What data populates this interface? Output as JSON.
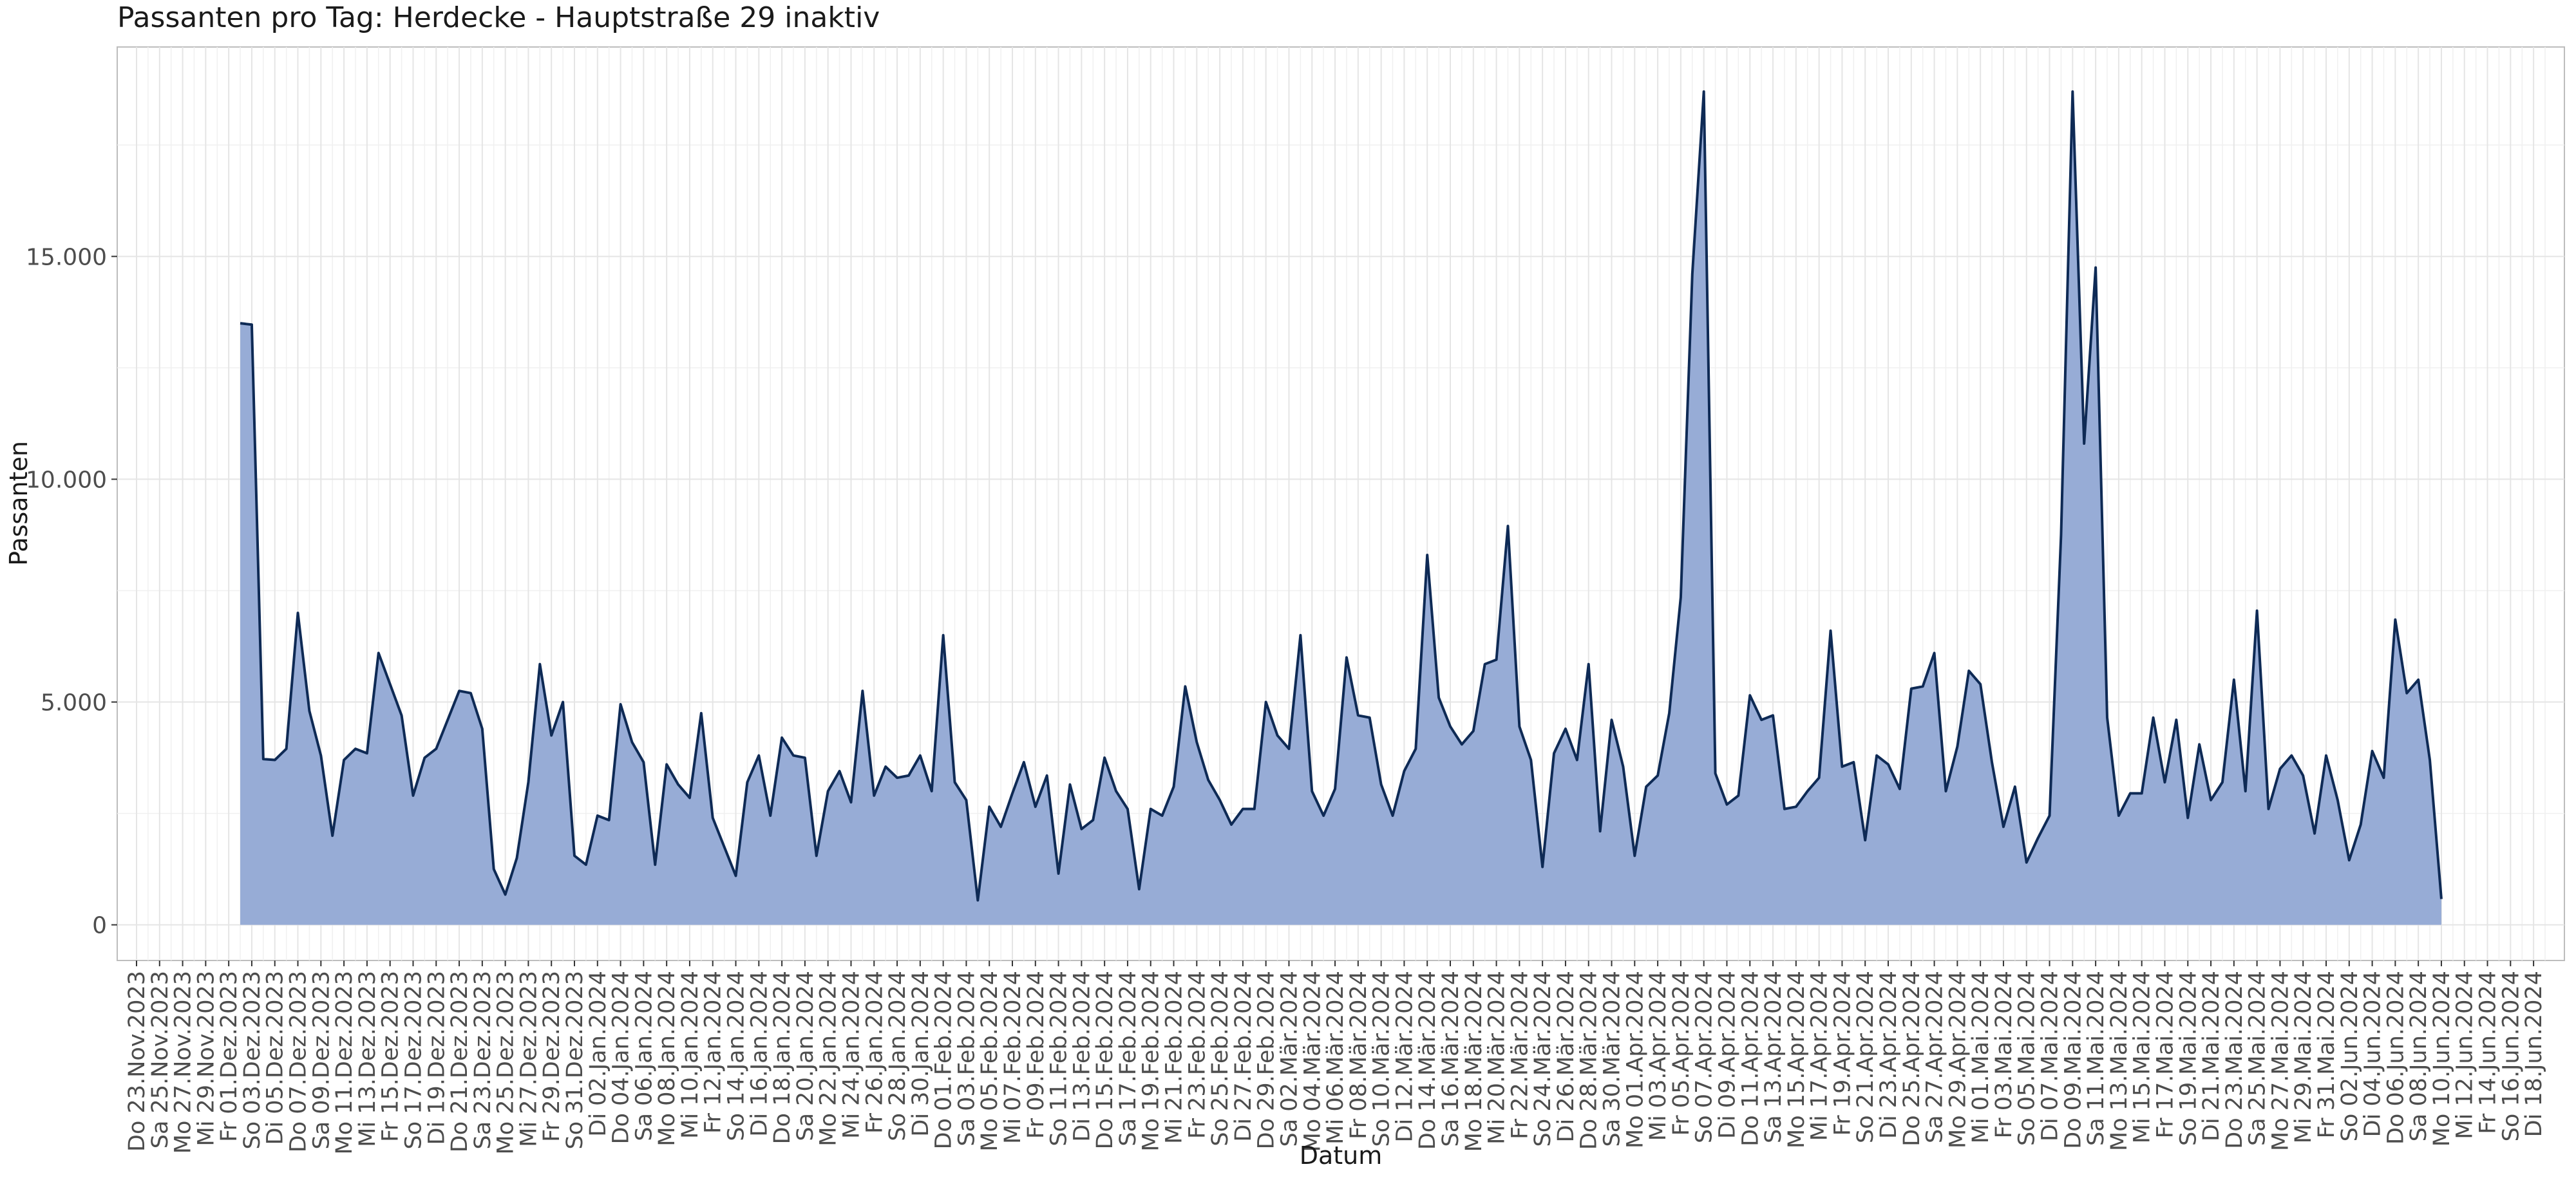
{
  "chart_data": {
    "type": "area",
    "title": "Passanten pro Tag: Herdecke - Hauptstraße 29 inaktiv",
    "xlabel": "Datum",
    "ylabel": "Passanten",
    "ylim": [
      -800,
      19700
    ],
    "y_ticks": [
      0,
      5000,
      10000,
      15000
    ],
    "y_tick_labels": [
      "0",
      "5.000",
      "10.000",
      "15.000"
    ],
    "grid": true,
    "x_range": [
      "2023-11-23",
      "2024-06-19"
    ],
    "x_tick_labels": [
      "Do 23.Nov.2023",
      "Sa 25.Nov.2023",
      "Mo 27.Nov.2023",
      "Mi 29.Nov.2023",
      "Fr 01.Dez.2023",
      "So 03.Dez.2023",
      "Di 05.Dez.2023",
      "Do 07.Dez.2023",
      "Sa 09.Dez.2023",
      "Mo 11.Dez.2023",
      "Mi 13.Dez.2023",
      "Fr 15.Dez.2023",
      "So 17.Dez.2023",
      "Di 19.Dez.2023",
      "Do 21.Dez.2023",
      "Sa 23.Dez.2023",
      "Mo 25.Dez.2023",
      "Mi 27.Dez.2023",
      "Fr 29.Dez.2023",
      "So 31.Dez.2023",
      "Di 02.Jan.2024",
      "Do 04.Jan.2024",
      "Sa 06.Jan.2024",
      "Mo 08.Jan.2024",
      "Mi 10.Jan.2024",
      "Fr 12.Jan.2024",
      "So 14.Jan.2024",
      "Di 16.Jan.2024",
      "Do 18.Jan.2024",
      "Sa 20.Jan.2024",
      "Mo 22.Jan.2024",
      "Mi 24.Jan.2024",
      "Fr 26.Jan.2024",
      "So 28.Jan.2024",
      "Di 30.Jan.2024",
      "Do 01.Feb.2024",
      "Sa 03.Feb.2024",
      "Mo 05.Feb.2024",
      "Mi 07.Feb.2024",
      "Fr 09.Feb.2024",
      "So 11.Feb.2024",
      "Di 13.Feb.2024",
      "Do 15.Feb.2024",
      "Sa 17.Feb.2024",
      "Mo 19.Feb.2024",
      "Mi 21.Feb.2024",
      "Fr 23.Feb.2024",
      "So 25.Feb.2024",
      "Di 27.Feb.2024",
      "Do 29.Feb.2024",
      "Sa 02.Mär.2024",
      "Mo 04.Mär.2024",
      "Mi 06.Mär.2024",
      "Fr 08.Mär.2024",
      "So 10.Mär.2024",
      "Di 12.Mär.2024",
      "Do 14.Mär.2024",
      "Sa 16.Mär.2024",
      "Mo 18.Mär.2024",
      "Mi 20.Mär.2024",
      "Fr 22.Mär.2024",
      "So 24.Mär.2024",
      "Di 26.Mär.2024",
      "Do 28.Mär.2024",
      "Sa 30.Mär.2024",
      "Mo 01.Apr.2024",
      "Mi 03.Apr.2024",
      "Fr 05.Apr.2024",
      "So 07.Apr.2024",
      "Di 09.Apr.2024",
      "Do 11.Apr.2024",
      "Sa 13.Apr.2024",
      "Mo 15.Apr.2024",
      "Mi 17.Apr.2024",
      "Fr 19.Apr.2024",
      "So 21.Apr.2024",
      "Di 23.Apr.2024",
      "Do 25.Apr.2024",
      "Sa 27.Apr.2024",
      "Mo 29.Apr.2024",
      "Mi 01.Mai.2024",
      "Fr 03.Mai.2024",
      "So 05.Mai.2024",
      "Di 07.Mai.2024",
      "Do 09.Mai.2024",
      "Sa 11.Mai.2024",
      "Mo 13.Mai.2024",
      "Mi 15.Mai.2024",
      "Fr 17.Mai.2024",
      "So 19.Mai.2024",
      "Di 21.Mai.2024",
      "Do 23.Mai.2024",
      "Sa 25.Mai.2024",
      "Mo 27.Mai.2024",
      "Mi 29.Mai.2024",
      "Fr 31.Mai.2024",
      "So 02.Jun.2024",
      "Di 04.Jun.2024",
      "Do 06.Jun.2024",
      "Sa 08.Jun.2024",
      "Mo 10.Jun.2024",
      "Mi 12.Jun.2024",
      "Fr 14.Jun.2024",
      "So 16.Jun.2024",
      "Di 18.Jun.2024"
    ],
    "x_start": "2023-12-02",
    "values": [
      13500,
      13470,
      3720,
      3700,
      3950,
      7000,
      4800,
      3800,
      2000,
      3700,
      3950,
      3850,
      6100,
      5400,
      4700,
      2900,
      3750,
      3950,
      4600,
      5250,
      5200,
      4400,
      1250,
      680,
      1500,
      3200,
      5850,
      4250,
      5000,
      1550,
      1350,
      2450,
      2350,
      4950,
      4100,
      3650,
      1350,
      3600,
      3150,
      2850,
      4750,
      2400,
      1750,
      1100,
      3200,
      3800,
      2450,
      4200,
      3800,
      3750,
      1550,
      3000,
      3450,
      2750,
      5250,
      2900,
      3550,
      3300,
      3350,
      3800,
      3000,
      6500,
      3200,
      2800,
      550,
      2650,
      2200,
      2950,
      3650,
      2650,
      3350,
      1150,
      3150,
      2150,
      2350,
      3750,
      3000,
      2600,
      800,
      2600,
      2450,
      3100,
      5350,
      4100,
      3250,
      2800,
      2250,
      2600,
      2600,
      5000,
      4250,
      3950,
      6500,
      3000,
      2450,
      3050,
      6000,
      4700,
      4650,
      3150,
      2450,
      3450,
      3950,
      8300,
      5100,
      4450,
      4050,
      4350,
      5850,
      5950,
      8950,
      4450,
      3700,
      1300,
      3850,
      4400,
      3700,
      5850,
      2100,
      4600,
      3550,
      1550,
      3100,
      3350,
      4750,
      7350,
      14600,
      18700,
      3400,
      2700,
      2900,
      5150,
      4600,
      4700,
      2600,
      2650,
      3000,
      3300,
      6600,
      3550,
      3650,
      1900,
      3800,
      3600,
      3050,
      5300,
      5350,
      6100,
      3000,
      4000,
      5700,
      5400,
      3650,
      2200,
      3100,
      1400,
      1950,
      2450,
      8750,
      18700,
      10800,
      14750,
      4650,
      2450,
      2950,
      2950,
      4650,
      3200,
      4600,
      2400,
      4050,
      2800,
      3200,
      5500,
      3000,
      7050,
      2600,
      3500,
      3800,
      3350,
      2050,
      3800,
      2800,
      1450,
      2250,
      3900,
      3300,
      6850,
      5200,
      5500,
      3700,
      580
    ],
    "series_colors": {
      "fill": "#97acd6",
      "line": "#0e2a55"
    }
  }
}
